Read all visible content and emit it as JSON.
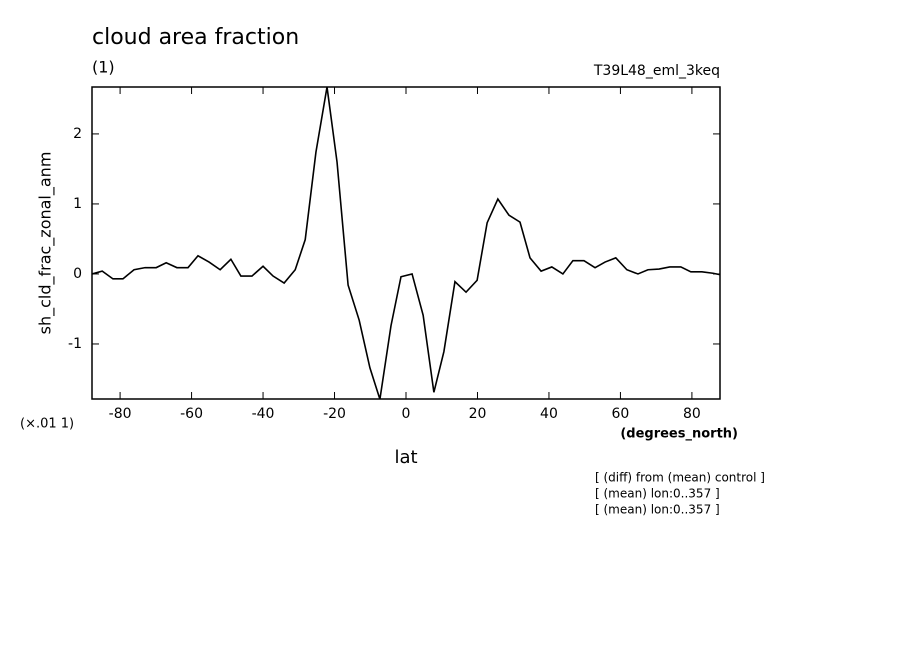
{
  "chart_data": {
    "type": "line",
    "title": "cloud area fraction",
    "subtitle": "(1)",
    "experiment": "T39L48_eml_3keq",
    "y_label": "sh_cld_frac_zonal_anm",
    "y_scale_note": "(×.01 1)",
    "x_unit": "(degrees_north)",
    "x_label": "lat",
    "notes": [
      "[ (diff) from (mean) control ]",
      "[ (mean) lon:0..357 ]",
      "[ (mean) lon:0..357 ]"
    ],
    "xlim": [
      -87.86,
      87.86
    ],
    "ylim": [
      -1.786,
      2.67
    ],
    "xticks": [
      -80,
      -60,
      -40,
      -20,
      0,
      20,
      40,
      60,
      80
    ],
    "yticks": [
      -1,
      0,
      1,
      2
    ],
    "color": "#000000",
    "x": [
      -87.8,
      -85.0,
      -82.0,
      -79.2,
      -76.1,
      -73.0,
      -69.9,
      -67.1,
      -64.1,
      -61.0,
      -58.2,
      -55.1,
      -52.0,
      -49.0,
      -46.2,
      -43.1,
      -40.0,
      -37.2,
      -34.1,
      -31.0,
      -28.2,
      -25.2,
      -22.1,
      -19.3,
      -16.2,
      -13.1,
      -10.1,
      -7.3,
      -4.2,
      -1.4,
      1.7,
      4.8,
      7.8,
      10.6,
      13.7,
      16.8,
      19.9,
      22.7,
      25.7,
      28.8,
      31.9,
      34.7,
      37.8,
      40.8,
      43.9,
      46.7,
      49.8,
      52.9,
      55.7,
      58.7,
      61.8,
      64.9,
      67.7,
      70.8,
      73.8,
      76.9,
      79.7,
      82.8,
      85.9,
      87.8
    ],
    "values": [
      0.0,
      0.04,
      -0.07,
      -0.07,
      0.06,
      0.09,
      0.09,
      0.16,
      0.09,
      0.09,
      0.26,
      0.17,
      0.06,
      0.21,
      -0.03,
      -0.03,
      0.11,
      -0.03,
      -0.13,
      0.06,
      0.49,
      1.74,
      2.67,
      1.6,
      -0.16,
      -0.66,
      -1.34,
      -1.79,
      -0.74,
      -0.04,
      0.0,
      -0.59,
      -1.69,
      -1.11,
      -0.11,
      -0.26,
      -0.09,
      0.73,
      1.07,
      0.84,
      0.74,
      0.23,
      0.04,
      0.1,
      0.0,
      0.19,
      0.19,
      0.09,
      0.17,
      0.23,
      0.06,
      0.0,
      0.06,
      0.07,
      0.1,
      0.1,
      0.03,
      0.03,
      0.01,
      -0.01
    ]
  }
}
